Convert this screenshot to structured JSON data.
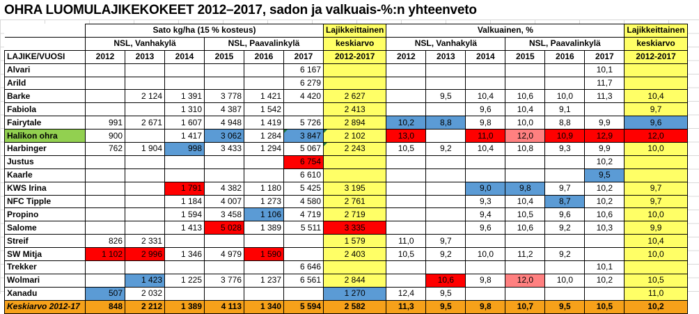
{
  "title": "OHRA LUOMULAJIKEKOKEET 2012–2017, sadon ja valkuais-%:n yhteenveto",
  "headers": {
    "yield_group": "Sato kg/ha (15 % kosteus)",
    "protein_group": "Valkuainen, %",
    "site_vanhakyla": "NSL, Vanhakylä",
    "site_paavalinkyla": "NSL, Paavalinkylä",
    "avg_line1": "Lajikkeittainen",
    "avg_line2": "keskiarvo",
    "avg_line3": "2012-2017",
    "row_label": "LAJIKE/VUOSI",
    "years": [
      "2012",
      "2013",
      "2014",
      "2015",
      "2016",
      "2017"
    ]
  },
  "rows": [
    {
      "name": "Alvari",
      "y": [
        "",
        "",
        "",
        "",
        "",
        "6 167"
      ],
      "ya": "",
      "p": [
        "",
        "",
        "",
        "",
        "",
        "10,1"
      ],
      "pa": ""
    },
    {
      "name": "Arild",
      "y": [
        "",
        "",
        "",
        "",
        "",
        "6 279"
      ],
      "ya": "",
      "p": [
        "",
        "",
        "",
        "",
        "",
        "11,7"
      ],
      "pa": ""
    },
    {
      "name": "Barke",
      "y": [
        "",
        "2 124",
        "1 391",
        "3 778",
        "1 421",
        "4 420"
      ],
      "ya": "2 627",
      "p": [
        "",
        "9,5",
        "10,4",
        "10,6",
        "10,0",
        "11,3"
      ],
      "pa": "10,4"
    },
    {
      "name": "Fabiola",
      "y": [
        "",
        "",
        "1 310",
        "4 387",
        "1 542",
        ""
      ],
      "ya": "2 413",
      "p": [
        "",
        "",
        "9,6",
        "10,4",
        "9,1",
        ""
      ],
      "pa": "9,7"
    },
    {
      "name": "Fairytale",
      "y": [
        "991",
        "2 671",
        "1 607",
        "4 948",
        "1 419",
        "5 726"
      ],
      "ya": "2 894",
      "p": [
        "10,2",
        "8,8",
        "9,8",
        "10,0",
        "8,8",
        "9,9"
      ],
      "pa": "9,6"
    },
    {
      "name": "Halikon ohra",
      "y": [
        "900",
        "",
        "1 417",
        "3 062",
        "1 284",
        "3 847"
      ],
      "ya": "2 102",
      "p": [
        "13,0",
        "",
        "11,0",
        "12,0",
        "10,9",
        "12,9"
      ],
      "pa": "12,0"
    },
    {
      "name": "Harbinger",
      "y": [
        "762",
        "1 904",
        "998",
        "3 433",
        "1 294",
        "5 067"
      ],
      "ya": "2 243",
      "p": [
        "10,5",
        "9,2",
        "10,4",
        "10,8",
        "9,3",
        "9,9"
      ],
      "pa": "10,0"
    },
    {
      "name": "Justus",
      "y": [
        "",
        "",
        "",
        "",
        "",
        "6 754"
      ],
      "ya": "",
      "p": [
        "",
        "",
        "",
        "",
        "",
        "10,2"
      ],
      "pa": ""
    },
    {
      "name": "Kaarle",
      "y": [
        "",
        "",
        "",
        "",
        "",
        "6 610"
      ],
      "ya": "",
      "p": [
        "",
        "",
        "",
        "",
        "",
        "9,5"
      ],
      "pa": ""
    },
    {
      "name": "KWS Irina",
      "y": [
        "",
        "",
        "1 791",
        "4 382",
        "1 180",
        "5 425"
      ],
      "ya": "3 195",
      "p": [
        "",
        "",
        "9,0",
        "9,8",
        "9,7",
        "10,2"
      ],
      "pa": "9,7"
    },
    {
      "name": "NFC Tipple",
      "y": [
        "",
        "",
        "1 184",
        "4 007",
        "1 273",
        "4 580"
      ],
      "ya": "2 761",
      "p": [
        "",
        "",
        "9,3",
        "10,4",
        "8,7",
        "10,2"
      ],
      "pa": "9,7"
    },
    {
      "name": "Propino",
      "y": [
        "",
        "",
        "1 594",
        "3 458",
        "1 106",
        "4 719"
      ],
      "ya": "2 719",
      "p": [
        "",
        "",
        "9,4",
        "10,5",
        "9,6",
        "10,6"
      ],
      "pa": "10,0"
    },
    {
      "name": "Salome",
      "y": [
        "",
        "",
        "1 413",
        "5 028",
        "1 389",
        "5 511"
      ],
      "ya": "3 335",
      "p": [
        "",
        "",
        "9,6",
        "10,6",
        "9,2",
        "10,3"
      ],
      "pa": "9,9"
    },
    {
      "name": "Streif",
      "y": [
        "826",
        "2 331",
        "",
        "",
        "",
        ""
      ],
      "ya": "1 579",
      "p": [
        "11,0",
        "9,7",
        "",
        "",
        "",
        ""
      ],
      "pa": "10,4"
    },
    {
      "name": "SW Mitja",
      "y": [
        "1 102",
        "2 996",
        "1 346",
        "4 979",
        "1 590",
        ""
      ],
      "ya": "2 403",
      "p": [
        "10,5",
        "9,2",
        "10,0",
        "11,2",
        "9,2",
        ""
      ],
      "pa": "10,0"
    },
    {
      "name": "Trekker",
      "y": [
        "",
        "",
        "",
        "",
        "",
        "6 646"
      ],
      "ya": "",
      "p": [
        "",
        "",
        "",
        "",
        "",
        "10,1"
      ],
      "pa": ""
    },
    {
      "name": "Wolmari",
      "y": [
        "",
        "1 423",
        "1 225",
        "3 776",
        "1 237",
        "6 561"
      ],
      "ya": "2 844",
      "p": [
        "",
        "10,6",
        "9,8",
        "12,0",
        "10,0",
        "10,2"
      ],
      "pa": "10,5"
    },
    {
      "name": "Xanadu",
      "y": [
        "507",
        "2 032",
        "",
        "",
        "",
        ""
      ],
      "ya": "1 270",
      "p": [
        "12,4",
        "9,5",
        "",
        "",
        "",
        ""
      ],
      "pa": "11,0"
    }
  ],
  "average_row": {
    "label": "Keskiarvo 2012-17",
    "y": [
      "848",
      "2 212",
      "1 389",
      "4 113",
      "1 340",
      "5 594"
    ],
    "ya": "2 582",
    "p": [
      "11,3",
      "9,5",
      "9,8",
      "10,7",
      "9,5",
      "10,5"
    ],
    "pa": "10,2"
  },
  "highlight_colors": {
    "blue": "#5b9bd5",
    "red": "#ff0000",
    "pink": "#ff8080",
    "yellow": "#ffff66",
    "green": "#92d050",
    "orange": "#f6a11a"
  }
}
